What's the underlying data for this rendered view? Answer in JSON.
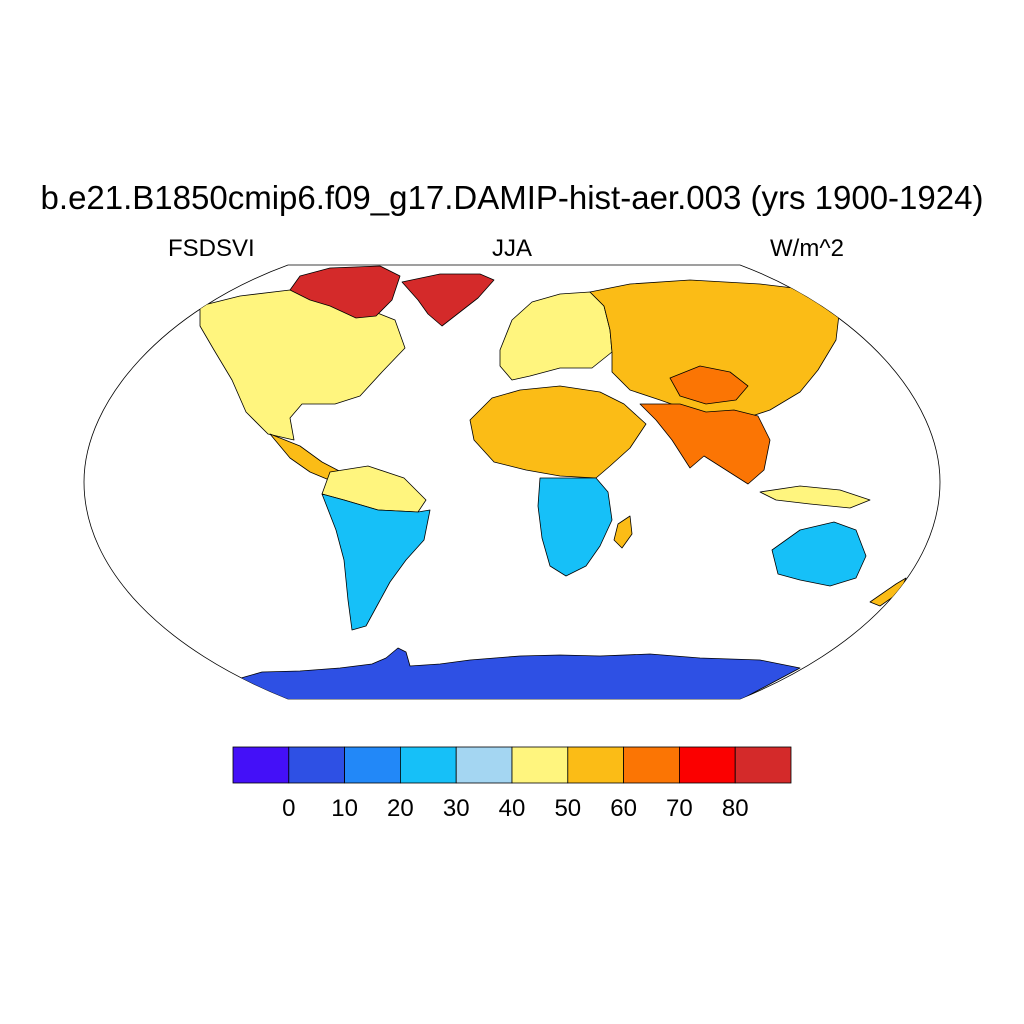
{
  "title": "b.e21.B1850cmip6.f09_g17.DAMIP-hist-aer.003 (yrs 1900-1924)",
  "left_label": "FSDSVI",
  "center_label": "JJA",
  "right_label": "W/m^2",
  "map": {
    "projection": "Robinson",
    "ocean_color": "#ffffff",
    "coastline_color": "#000000"
  },
  "colorbar": {
    "colors": [
      "#4410f8",
      "#2e50e4",
      "#2288f8",
      "#16c0f8",
      "#a4d6f2",
      "#fff57e",
      "#fbbc16",
      "#fb7504",
      "#fb0000",
      "#d42a2a"
    ],
    "levels": [
      "0",
      "10",
      "20",
      "30",
      "40",
      "50",
      "60",
      "70",
      "80"
    ]
  },
  "regions": [
    {
      "name": "greenland",
      "value_class": 9
    },
    {
      "name": "canadian-arctic",
      "value_class": 9
    },
    {
      "name": "north-america",
      "value_class": 5
    },
    {
      "name": "central-america",
      "value_class": 6
    },
    {
      "name": "south-america-north",
      "value_class": 5
    },
    {
      "name": "south-america-south",
      "value_class": 3
    },
    {
      "name": "europe",
      "value_class": 5
    },
    {
      "name": "siberia",
      "value_class": 6
    },
    {
      "name": "sahara",
      "value_class": 6
    },
    {
      "name": "southern-africa",
      "value_class": 3
    },
    {
      "name": "tibetan-plateau",
      "value_class": 7
    },
    {
      "name": "south-asia",
      "value_class": 7
    },
    {
      "name": "australia",
      "value_class": 3
    },
    {
      "name": "antarctica",
      "value_class": 1
    }
  ]
}
